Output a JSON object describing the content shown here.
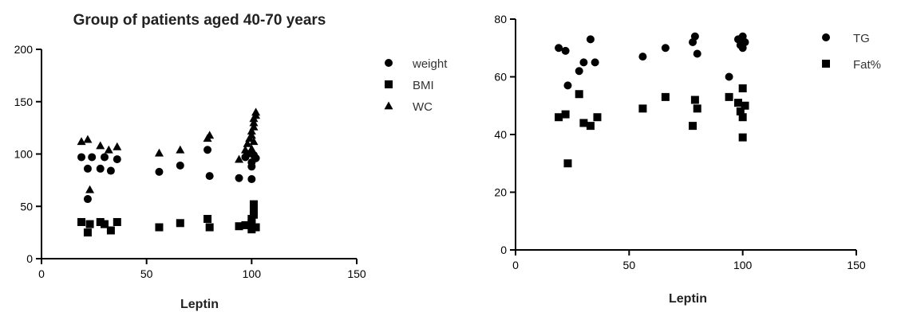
{
  "chart_data": [
    {
      "type": "scatter",
      "title": "Group of patients aged 40-70 years",
      "xlabel": "Leptin",
      "ylabel": "",
      "xlim": [
        0,
        150
      ],
      "ylim": [
        0,
        200
      ],
      "xticks": [
        "0",
        "50",
        "100",
        "150"
      ],
      "yticks": [
        "0",
        "50",
        "100",
        "150",
        "200"
      ],
      "legend_position": "right",
      "series": [
        {
          "name": "weight",
          "marker": "circle",
          "points": [
            [
              19,
              97
            ],
            [
              22,
              86
            ],
            [
              22,
              57
            ],
            [
              24,
              97
            ],
            [
              28,
              86
            ],
            [
              30,
              97
            ],
            [
              33,
              84
            ],
            [
              36,
              95
            ],
            [
              56,
              83
            ],
            [
              66,
              89
            ],
            [
              79,
              104
            ],
            [
              80,
              79
            ],
            [
              94,
              77
            ],
            [
              97,
              97
            ],
            [
              98,
              100
            ],
            [
              100,
              76
            ],
            [
              100,
              88
            ],
            [
              100,
              92
            ],
            [
              101,
              99
            ],
            [
              102,
              96
            ]
          ]
        },
        {
          "name": "BMI",
          "marker": "square",
          "points": [
            [
              19,
              35
            ],
            [
              22,
              25
            ],
            [
              23,
              33
            ],
            [
              28,
              35
            ],
            [
              30,
              33
            ],
            [
              33,
              27
            ],
            [
              36,
              35
            ],
            [
              56,
              30
            ],
            [
              66,
              34
            ],
            [
              79,
              38
            ],
            [
              80,
              30
            ],
            [
              94,
              31
            ],
            [
              97,
              32
            ],
            [
              100,
              28
            ],
            [
              100,
              34
            ],
            [
              100,
              38
            ],
            [
              101,
              42
            ],
            [
              101,
              46
            ],
            [
              101,
              52
            ],
            [
              102,
              30
            ]
          ]
        },
        {
          "name": "WC",
          "marker": "triangle",
          "points": [
            [
              19,
              112
            ],
            [
              22,
              114
            ],
            [
              23,
              66
            ],
            [
              28,
              108
            ],
            [
              32,
              104
            ],
            [
              36,
              107
            ],
            [
              56,
              101
            ],
            [
              66,
              104
            ],
            [
              79,
              115
            ],
            [
              80,
              118
            ],
            [
              94,
              95
            ],
            [
              97,
              104
            ],
            [
              98,
              110
            ],
            [
              99,
              115
            ],
            [
              100,
              118
            ],
            [
              100,
              122
            ],
            [
              101,
              126
            ],
            [
              101,
              130
            ],
            [
              101,
              134
            ],
            [
              102,
              137
            ],
            [
              102,
              140
            ],
            [
              100,
              105
            ],
            [
              101,
              112
            ]
          ]
        }
      ]
    },
    {
      "type": "scatter",
      "title": "",
      "xlabel": "Leptin",
      "ylabel": "",
      "xlim": [
        0,
        150
      ],
      "ylim": [
        0,
        80
      ],
      "xticks": [
        "0",
        "50",
        "100",
        "150"
      ],
      "yticks": [
        "0",
        "20",
        "40",
        "60",
        "80"
      ],
      "legend_position": "right",
      "series": [
        {
          "name": "TG",
          "marker": "circle",
          "points": [
            [
              19,
              70
            ],
            [
              22,
              69
            ],
            [
              23,
              57
            ],
            [
              28,
              62
            ],
            [
              30,
              65
            ],
            [
              33,
              73
            ],
            [
              35,
              65
            ],
            [
              56,
              67
            ],
            [
              66,
              70
            ],
            [
              78,
              72
            ],
            [
              79,
              74
            ],
            [
              80,
              68
            ],
            [
              94,
              60
            ],
            [
              98,
              73
            ],
            [
              99,
              71
            ],
            [
              100,
              74
            ],
            [
              100,
              70
            ],
            [
              101,
              72
            ]
          ]
        },
        {
          "name": "Fat%",
          "marker": "square",
          "points": [
            [
              19,
              46
            ],
            [
              22,
              47
            ],
            [
              23,
              30
            ],
            [
              28,
              54
            ],
            [
              30,
              44
            ],
            [
              33,
              43
            ],
            [
              36,
              46
            ],
            [
              56,
              49
            ],
            [
              66,
              53
            ],
            [
              78,
              43
            ],
            [
              79,
              52
            ],
            [
              80,
              49
            ],
            [
              94,
              53
            ],
            [
              98,
              51
            ],
            [
              99,
              48
            ],
            [
              100,
              56
            ],
            [
              100,
              46
            ],
            [
              100,
              39
            ],
            [
              101,
              50
            ]
          ]
        }
      ]
    }
  ]
}
